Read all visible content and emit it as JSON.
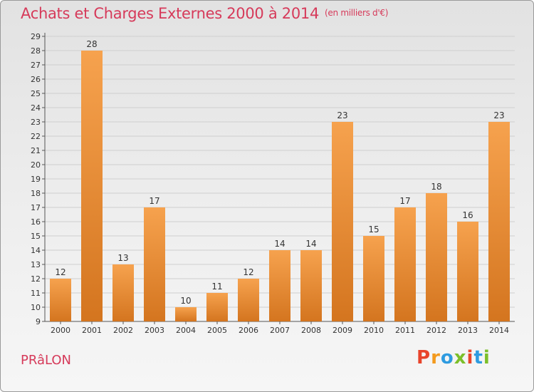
{
  "title": "Achats et Charges Externes 2000 à 2014",
  "unit": "(en milliers d'€)",
  "place": "PRâLON",
  "brand": {
    "text": "Proxiti",
    "colors": [
      "#e8442b",
      "#f39a1e",
      "#2e9be0",
      "#7cbf2a",
      "#e8442b",
      "#2e9be0",
      "#7cbf2a"
    ]
  },
  "colors": {
    "bar_light": "#f6a24e",
    "bar_dark": "#d4751f",
    "title": "#d63a5a"
  },
  "chart_data": {
    "type": "bar",
    "categories": [
      "2000",
      "2001",
      "2002",
      "2003",
      "2004",
      "2005",
      "2006",
      "2007",
      "2008",
      "2009",
      "2010",
      "2011",
      "2012",
      "2013",
      "2014"
    ],
    "values": [
      12,
      28,
      13,
      17,
      10,
      11,
      12,
      14,
      14,
      23,
      15,
      17,
      18,
      16,
      23
    ],
    "ylim": [
      9,
      29
    ],
    "yticks": [
      9,
      10,
      11,
      12,
      13,
      14,
      15,
      16,
      17,
      18,
      19,
      20,
      21,
      22,
      23,
      24,
      25,
      26,
      27,
      28,
      29
    ],
    "grid": true,
    "legend": "none"
  }
}
